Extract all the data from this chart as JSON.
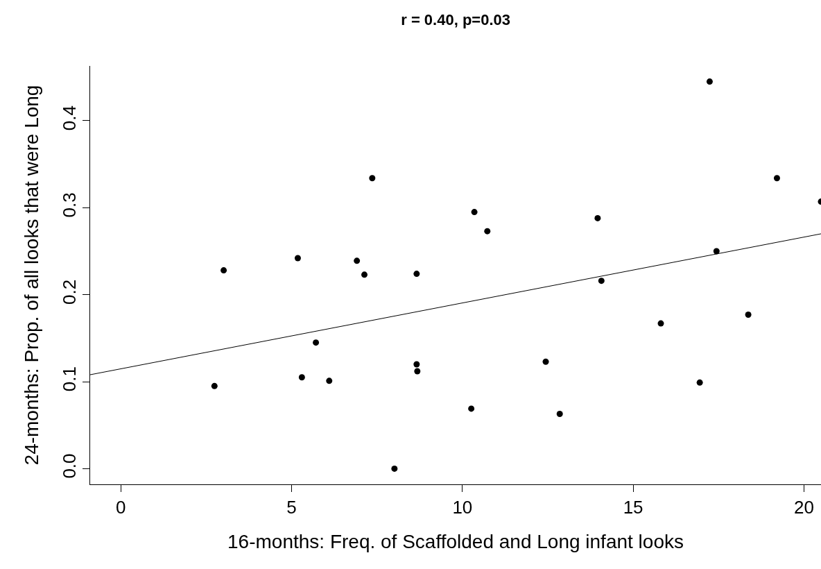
{
  "chart_data": {
    "type": "scatter",
    "title": "r = 0.40, p=0.03",
    "xlabel": "16-months: Freq. of Scaffolded and Long infant looks",
    "ylabel": "24-months: Prop. of all looks that were Long",
    "marker": "circle",
    "grid": false,
    "xlim": [
      -0.9,
      20.5
    ],
    "ylim": [
      -0.018,
      0.463
    ],
    "xticks": [
      0,
      5,
      10,
      15,
      20
    ],
    "yticks": [
      {
        "value": 0,
        "label": "0.0"
      },
      0.1,
      0.2,
      0.3,
      0.4
    ],
    "series": [
      {
        "color": "#000000",
        "x": [
          2.74,
          3.01,
          5.18,
          5.3,
          5.71,
          6.1,
          6.91,
          7.13,
          7.36,
          8.01,
          8.66,
          8.66,
          8.68,
          10.26,
          10.35,
          10.73,
          12.44,
          12.85,
          13.96,
          14.07,
          15.81,
          16.95,
          17.24,
          17.44,
          18.37,
          19.21,
          20.5
        ],
        "values": [
          0.095,
          0.228,
          0.242,
          0.105,
          0.145,
          0.101,
          0.239,
          0.223,
          0.334,
          0.0,
          0.224,
          0.12,
          0.112,
          0.069,
          0.295,
          0.273,
          0.123,
          0.063,
          0.288,
          0.216,
          0.167,
          0.099,
          0.445,
          0.25,
          0.177,
          0.334,
          0.307
        ]
      },
      {
        "type": "line",
        "color": "#000000",
        "marker": "none",
        "x": [
          -0.9,
          20.5
        ],
        "values": [
          0.108,
          0.27
        ]
      }
    ]
  }
}
